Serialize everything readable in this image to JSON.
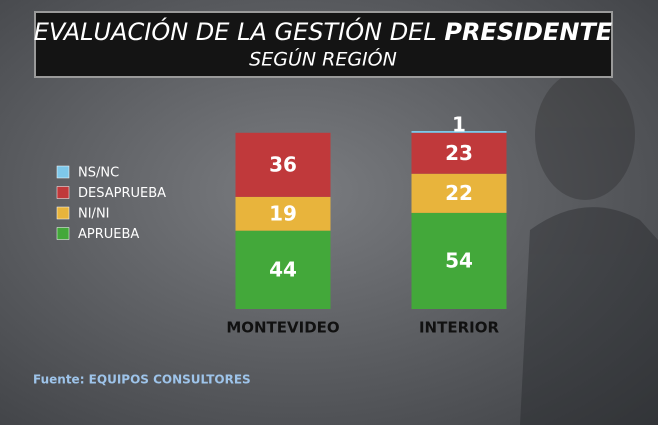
{
  "chart_data": {
    "type": "stacked_bar",
    "title": "EVALUACIÓN DE LA GESTIÓN DEL",
    "title_bold": "PRESIDENTE",
    "subtitle": "SEGÚN REGIÓN",
    "source": "Fuente: EQUIPOS CONSULTORES",
    "categories": [
      "MONTEVIDEO",
      "INTERIOR"
    ],
    "series": [
      {
        "name": "NS/NC",
        "color": "#7ec8ea",
        "values": [
          null,
          1
        ]
      },
      {
        "name": "DESAPRUEBA",
        "color": "#c0393b",
        "values": [
          36,
          23
        ]
      },
      {
        "name": "NI/NI",
        "color": "#e8b43c",
        "values": [
          19,
          22
        ]
      },
      {
        "name": "APRUEBA",
        "color": "#43a83a",
        "values": [
          44,
          54
        ]
      }
    ]
  }
}
